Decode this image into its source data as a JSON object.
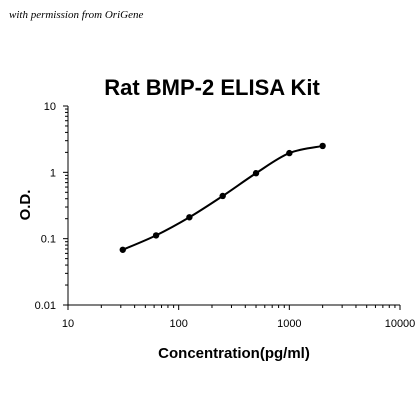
{
  "credit": "with permission from OriGene",
  "chart_data": {
    "type": "line",
    "title": "Rat BMP-2 ELISA Kit",
    "xlabel": "Concentration(pg/ml)",
    "ylabel": "O.D.",
    "xscale": "log",
    "yscale": "log",
    "xlim": [
      10,
      10000
    ],
    "ylim": [
      0.01,
      10
    ],
    "x_ticks": [
      "10",
      "100",
      "1000",
      "10000"
    ],
    "y_ticks": [
      "0.01",
      "0.1",
      "1",
      "10"
    ],
    "grid": false,
    "legend": "none",
    "series": [
      {
        "x": [
          31.25,
          62.5,
          125,
          250,
          500,
          1000,
          2000
        ],
        "y": [
          0.068,
          0.112,
          0.21,
          0.44,
          0.97,
          1.95,
          2.5
        ]
      }
    ],
    "line_color": "#000000"
  }
}
